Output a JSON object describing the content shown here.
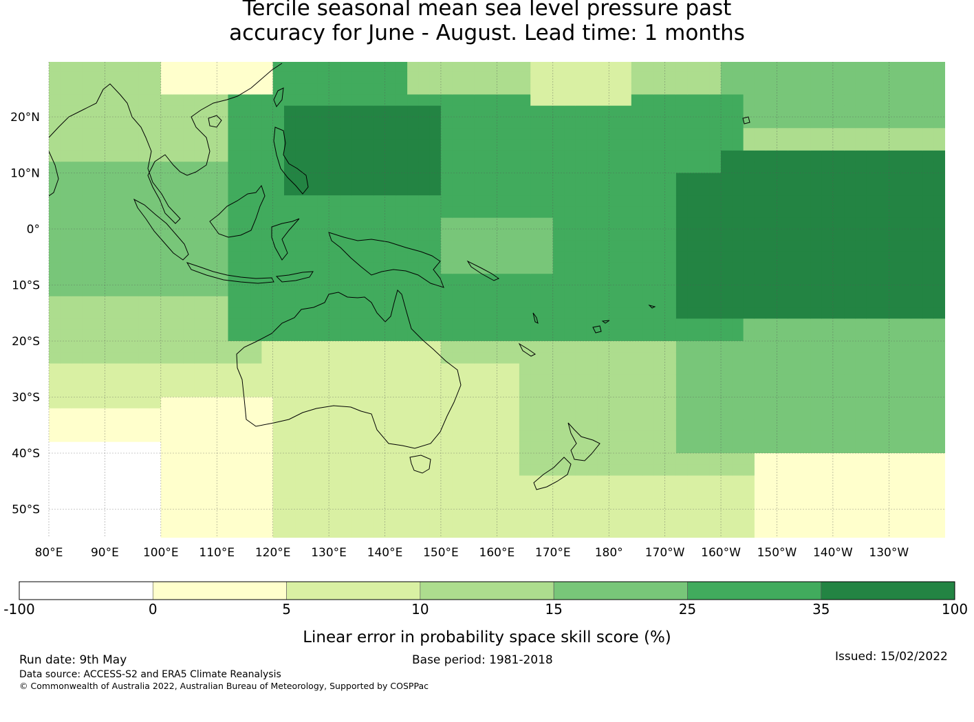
{
  "title_lines": [
    "Tercile seasonal mean sea level pressure past",
    "accuracy for June - August. Lead time: 1 months"
  ],
  "map": {
    "lon_labels": [
      "80°E",
      "90°E",
      "100°E",
      "110°E",
      "120°E",
      "130°E",
      "140°E",
      "150°E",
      "160°E",
      "170°E",
      "180°",
      "170°W",
      "160°W",
      "150°W",
      "140°W",
      "130°W"
    ],
    "lat_labels": [
      "20°N",
      "10°N",
      "0°",
      "10°S",
      "20°S",
      "30°S",
      "40°S",
      "50°S"
    ]
  },
  "colorbar": {
    "ticks": [
      "-100",
      "0",
      "5",
      "10",
      "15",
      "25",
      "35",
      "100"
    ],
    "colors": [
      "#ffffff",
      "#ffffcc",
      "#d9f0a3",
      "#addd8e",
      "#78c679",
      "#41ab5d",
      "#238443"
    ],
    "label": "Linear error in probability space skill score (%)"
  },
  "footer": {
    "run_date": "Run date: 9th May",
    "base_period": "Base period: 1981-2018",
    "issued": "Issued: 15/02/2022",
    "data_source": "Data source: ACCESS-S2 and ERA5 Climate Reanalysis",
    "copyright": "© Commonwealth of Australia 2022, Australian Bureau of Meteorology, Supported by COSPPac"
  }
}
